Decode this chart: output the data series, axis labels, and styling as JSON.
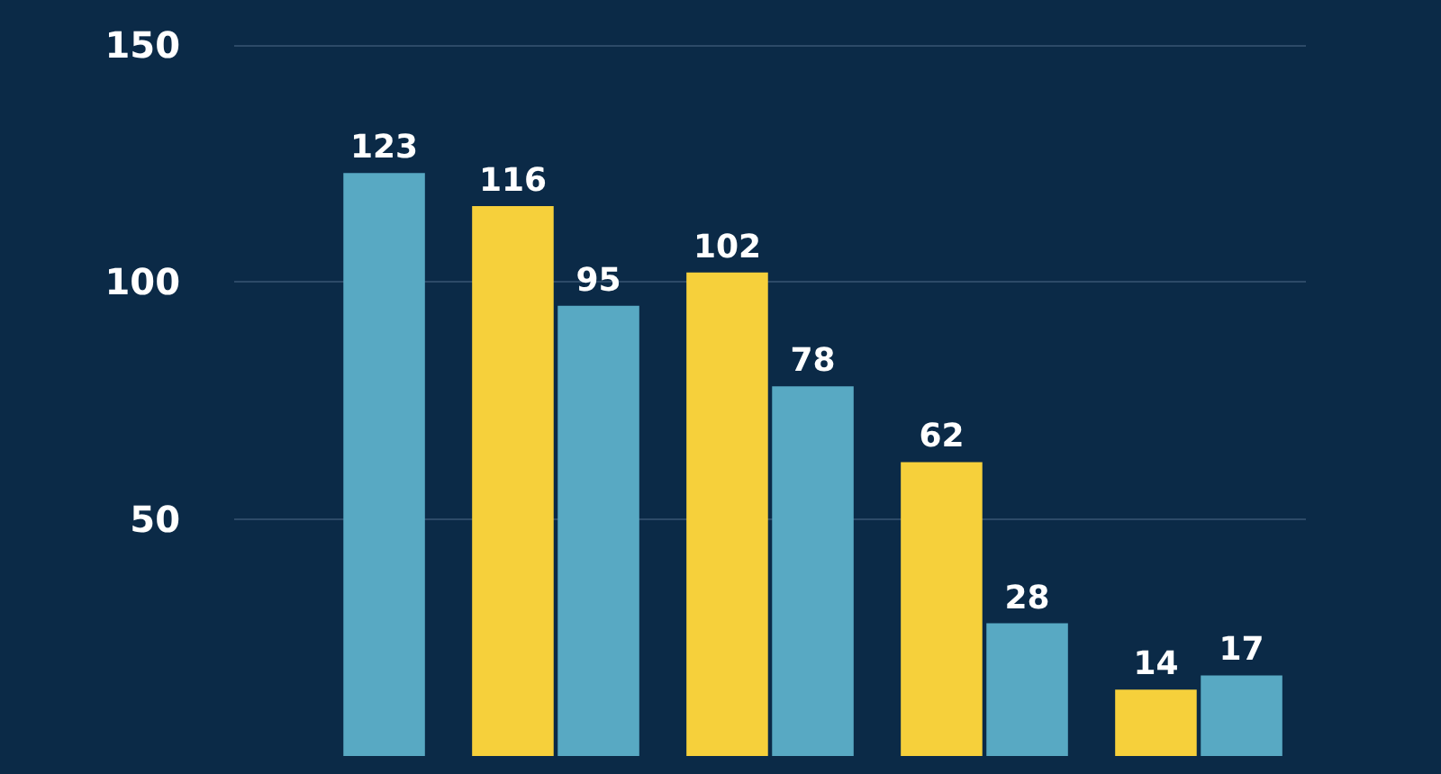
{
  "chart_data": {
    "type": "bar",
    "categories": [
      null,
      null,
      null,
      null,
      null
    ],
    "series": [
      {
        "color": "#f6d03b",
        "values": [
          null,
          116,
          102,
          62,
          14
        ]
      },
      {
        "color": "#58a9c3",
        "values": [
          123,
          95,
          78,
          28,
          17
        ]
      }
    ],
    "ylim": [
      0,
      150
    ],
    "yticks": [
      50,
      100,
      150
    ],
    "grid": "y",
    "data_labels": true
  }
}
